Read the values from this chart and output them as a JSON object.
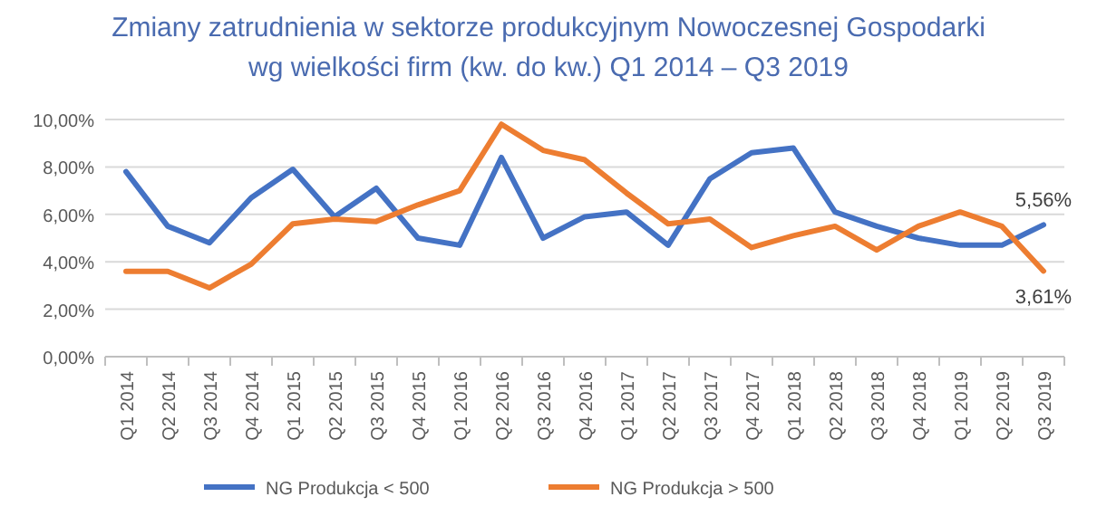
{
  "chart_data": {
    "type": "line",
    "title": "Zmiany zatrudnienia w sektorze produkcyjnym Nowoczesnej Gospodarki\nwg wielkości firm (kw. do kw.) Q1 2014 – Q3 2019",
    "categories": [
      "Q1 2014",
      "Q2 2014",
      "Q3 2014",
      "Q4 2014",
      "Q1 2015",
      "Q2 2015",
      "Q3 2015",
      "Q4 2015",
      "Q1 2016",
      "Q2 2016",
      "Q3 2016",
      "Q4 2016",
      "Q1 2017",
      "Q2 2017",
      "Q3 2017",
      "Q4 2017",
      "Q1 2018",
      "Q2 2018",
      "Q3 2018",
      "Q4 2018",
      "Q1 2019",
      "Q2 2019",
      "Q3 2019"
    ],
    "series": [
      {
        "name": "NG Produkcja < 500",
        "color": "#4472c4",
        "values": [
          7.8,
          5.5,
          4.8,
          6.7,
          7.9,
          5.9,
          7.1,
          5.0,
          4.7,
          8.4,
          5.0,
          5.9,
          6.1,
          4.7,
          7.5,
          8.6,
          8.8,
          6.1,
          5.5,
          5.0,
          4.7,
          4.7,
          5.56
        ],
        "value_labels": [
          null,
          null,
          null,
          null,
          null,
          null,
          null,
          null,
          null,
          null,
          null,
          null,
          null,
          null,
          null,
          null,
          null,
          null,
          null,
          null,
          null,
          null,
          "5,56%"
        ]
      },
      {
        "name": "NG Produkcja > 500",
        "color": "#ed7d31",
        "values": [
          3.6,
          3.6,
          2.9,
          3.9,
          5.6,
          5.8,
          5.7,
          6.4,
          7.0,
          9.8,
          8.7,
          8.3,
          6.9,
          5.6,
          5.8,
          4.6,
          5.1,
          5.5,
          4.5,
          5.5,
          6.1,
          5.5,
          3.61
        ],
        "value_labels": [
          null,
          null,
          null,
          null,
          null,
          null,
          null,
          null,
          null,
          null,
          null,
          null,
          null,
          null,
          null,
          null,
          null,
          null,
          null,
          null,
          null,
          null,
          "3,61%"
        ]
      }
    ],
    "ylim": [
      0,
      10
    ],
    "yticks": [
      {
        "value": 0,
        "label": "0,00%"
      },
      {
        "value": 2,
        "label": "2,00%"
      },
      {
        "value": 4,
        "label": "4,00%"
      },
      {
        "value": 6,
        "label": "6,00%"
      },
      {
        "value": 8,
        "label": "8,00%"
      },
      {
        "value": 10,
        "label": "10,00%"
      }
    ],
    "grid": "y",
    "legend": "bottom",
    "marker": "none",
    "line_style": "solid"
  }
}
